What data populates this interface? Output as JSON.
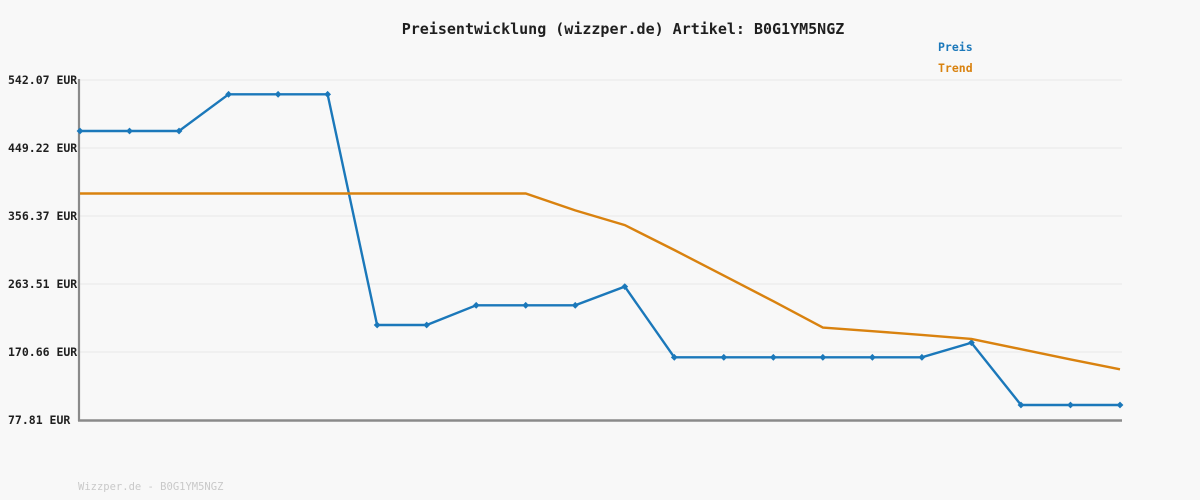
{
  "title": "Preisentwicklung (wizzper.de) Artikel: B0G1YM5NGZ",
  "footer": "Wizzper.de - B0G1YM5NGZ",
  "colors": {
    "background": "#f8f8f8",
    "grid": "#eaeaea",
    "axis": "#8a8a8a",
    "price": "#1b78ba",
    "trend": "#d9820f",
    "title_text": "#1f1f1f",
    "watermark_text": "#c9c9c9"
  },
  "chart_data": {
    "type": "line",
    "title": "Preisentwicklung (wizzper.de) Artikel: B0G1YM5NGZ",
    "xlabel": "",
    "ylabel": "",
    "x": [
      1,
      2,
      3,
      4,
      5,
      6,
      7,
      8,
      9,
      10,
      11,
      12,
      13,
      14,
      15,
      16,
      17,
      18,
      19,
      20,
      21,
      22
    ],
    "x_tick_labels_visible": false,
    "ylim": [
      77.81,
      542.07
    ],
    "grid": "horizontal",
    "legend_position": "top-right",
    "yticks": [
      {
        "value": 542.07,
        "label": "542.07 EUR"
      },
      {
        "value": 449.22,
        "label": "449.22 EUR"
      },
      {
        "value": 356.37,
        "label": "356.37 EUR"
      },
      {
        "value": 263.51,
        "label": "263.51 EUR"
      },
      {
        "value": 170.66,
        "label": "170.66 EUR"
      },
      {
        "value": 77.81,
        "label": "77.81 EUR"
      }
    ],
    "series": [
      {
        "name": "Preis",
        "color": "#1b78ba",
        "marker": "diamond",
        "values": [
          472.4,
          472.4,
          472.4,
          522.5,
          522.5,
          522.5,
          207.5,
          207.5,
          234.4,
          234.4,
          234.4,
          259.9,
          163.4,
          163.4,
          163.4,
          163.4,
          163.4,
          163.4,
          183.4,
          98.3,
          98.3,
          98.3
        ]
      },
      {
        "name": "Trend",
        "color": "#d9820f",
        "marker": "none",
        "values": [
          387.1,
          387.1,
          387.1,
          387.1,
          387.1,
          387.1,
          387.1,
          387.1,
          387.1,
          387.1,
          364.0,
          344.0,
          310.0,
          275.0,
          240.0,
          204.0,
          199.0,
          194.0,
          188.5,
          174.5,
          160.5,
          147.0
        ]
      }
    ]
  }
}
